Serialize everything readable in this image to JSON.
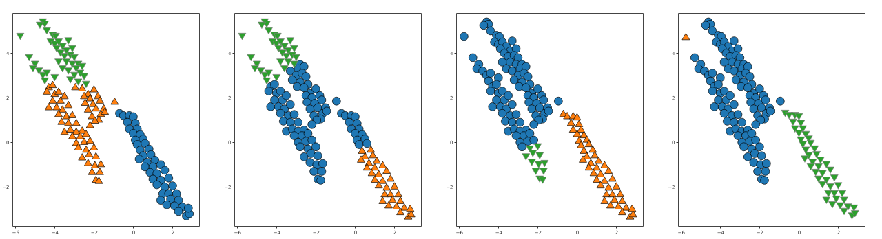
{
  "chart_data": [
    {
      "type": "scatter",
      "xlim": [
        -6.15,
        3.35
      ],
      "ylim": [
        -3.75,
        5.8
      ],
      "xticks": [
        -6,
        -4,
        -2,
        0,
        2
      ],
      "yticks": [
        -2,
        0,
        2,
        4
      ],
      "grid": false,
      "series": [
        {
          "color": "#1f77b4",
          "marker": "circle",
          "x": [
            -0.7,
            -0.5,
            -0.2,
            0.0,
            -0.3,
            0.1,
            -0.2,
            0.2,
            0.0,
            0.35,
            0.1,
            0.5,
            0.2,
            0.6,
            0.35,
            0.8,
            0.5,
            0.9,
            0.3,
            0.7,
            1.1,
            0.6,
            1.0,
            1.4,
            0.85,
            1.2,
            1.6,
            1.0,
            1.4,
            1.8,
            1.2,
            1.6,
            2.0,
            1.5,
            1.8,
            2.2,
            1.4,
            1.9,
            2.3,
            1.7,
            2.1,
            2.5,
            2.3,
            2.7,
            2.85,
            2.8
          ],
          "values": [
            1.3,
            1.2,
            1.2,
            1.15,
            0.9,
            0.85,
            0.6,
            0.6,
            0.4,
            0.35,
            0.1,
            0.15,
            -0.1,
            -0.05,
            -0.35,
            -0.3,
            -0.6,
            -0.55,
            -0.75,
            -0.9,
            -0.8,
            -1.1,
            -1.1,
            -1.0,
            -1.35,
            -1.4,
            -1.25,
            -1.65,
            -1.7,
            -1.6,
            -1.9,
            -2.0,
            -1.95,
            -2.3,
            -2.3,
            -2.3,
            -2.6,
            -2.55,
            -2.6,
            -2.8,
            -2.85,
            -2.9,
            -3.1,
            -3.3,
            -3.2,
            -2.95
          ]
        },
        {
          "color": "#ff7f0e",
          "marker": "triangle",
          "x": [
            -2.95,
            -2.6,
            -2.3,
            -2.0,
            -2.5,
            -2.2,
            -1.8,
            -2.45,
            -2.05,
            -1.7,
            -2.3,
            -1.9,
            -1.5,
            -1.65,
            -2.1,
            -1.75,
            -1.45,
            -1.95,
            -4.3,
            -4.1,
            -4.4,
            -4.0,
            -3.8,
            -4.3,
            -4.1,
            -3.7,
            -3.5,
            -3.9,
            -3.6,
            -3.3,
            -3.8,
            -3.4,
            -3.1,
            -3.65,
            -3.3,
            -2.9,
            -3.5,
            -3.2,
            -2.9,
            -2.6,
            -3.1,
            -2.7,
            -2.4,
            -2.9,
            -2.5,
            -2.2,
            -2.2,
            -2.8,
            -2.4,
            -2.0,
            -2.6,
            -2.25,
            -1.9,
            -2.3,
            -1.95,
            -1.65,
            -2.1,
            -1.7,
            -1.9,
            -1.75,
            -0.95
          ],
          "values": [
            2.5,
            2.45,
            2.2,
            2.4,
            2.1,
            2.0,
            2.1,
            1.8,
            1.75,
            1.9,
            1.5,
            1.55,
            1.55,
            1.3,
            1.2,
            1.05,
            1.4,
            1.0,
            2.5,
            2.6,
            2.3,
            2.2,
            2.3,
            1.6,
            1.9,
            1.9,
            2.1,
            1.6,
            1.5,
            1.7,
            1.3,
            1.2,
            1.25,
            0.95,
            0.9,
            0.9,
            0.5,
            0.6,
            0.5,
            0.55,
            0.3,
            0.3,
            0.4,
            0.0,
            0.05,
            0.8,
            0.1,
            -0.2,
            -0.3,
            -0.2,
            -0.65,
            -0.5,
            -0.6,
            -0.9,
            -1.0,
            -0.95,
            -1.3,
            -1.3,
            -1.65,
            -1.7,
            1.85
          ]
        },
        {
          "color": "#2ca02c",
          "marker": "triangle-down",
          "x": [
            -4.6,
            -4.5,
            -4.75,
            -4.4,
            -4.1,
            -3.95,
            -4.2,
            -4.0,
            -3.8,
            -3.3,
            -3.6,
            -3.9,
            -3.4,
            -3.1,
            -3.7,
            -3.5,
            -3.2,
            -3.0,
            -3.8,
            -3.4,
            -3.1,
            -2.8,
            -3.6,
            -3.3,
            -2.9,
            -2.6,
            -3.0,
            -2.7,
            -3.2,
            -2.5,
            -2.8,
            -2.4,
            -5.3,
            -5.0,
            -5.1,
            -4.8,
            -4.6,
            -4.4,
            -4.0,
            -4.5,
            -5.75
          ],
          "values": [
            5.4,
            5.3,
            5.25,
            5.0,
            4.8,
            4.75,
            4.5,
            4.4,
            4.5,
            4.55,
            4.3,
            4.2,
            4.1,
            4.2,
            4.0,
            3.85,
            3.9,
            3.8,
            3.6,
            3.6,
            3.5,
            3.5,
            3.3,
            3.2,
            3.3,
            3.4,
            3.0,
            3.1,
            2.8,
            2.95,
            2.7,
            2.6,
            3.8,
            3.5,
            3.3,
            3.2,
            3.0,
            3.1,
            2.9,
            2.75,
            4.75
          ]
        }
      ]
    },
    {
      "type": "scatter",
      "xlim": [
        -6.15,
        3.35
      ],
      "ylim": [
        -3.75,
        5.8
      ],
      "xticks": [
        -6,
        -4,
        -2,
        0,
        2
      ],
      "yticks": [
        -2,
        0,
        2,
        4
      ],
      "grid": false,
      "series": [
        {
          "color": "#1f77b4",
          "marker": "circle",
          "x": [
            -2.8,
            -3.3,
            -2.9,
            -2.6,
            -3.0,
            -2.7,
            -3.2,
            -2.5,
            -2.8,
            -2.4,
            -2.95,
            -2.6,
            -2.3,
            -2.0,
            -2.5,
            -2.2,
            -1.8,
            -2.45,
            -2.05,
            -1.7,
            -2.3,
            -1.9,
            -1.5,
            -1.65,
            -2.1,
            -1.75,
            -1.45,
            -1.95,
            -4.3,
            -4.1,
            -4.4,
            -4.0,
            -3.8,
            -4.3,
            -4.1,
            -3.7,
            -3.5,
            -3.9,
            -3.6,
            -3.3,
            -3.8,
            -3.4,
            -3.1,
            -3.65,
            -3.3,
            -2.9,
            -3.5,
            -3.2,
            -2.9,
            -2.6,
            -3.1,
            -2.7,
            -2.4,
            -2.9,
            -2.5,
            -2.2,
            -2.2,
            -2.8,
            -2.4,
            -2.0,
            -2.6,
            -2.25,
            -1.9,
            -2.3,
            -1.95,
            -1.65,
            -2.1,
            -1.7,
            -1.9,
            -1.75,
            -0.95,
            -0.7,
            -0.5,
            -0.2,
            0.0,
            -0.3,
            0.1,
            -0.2,
            0.2,
            0.0,
            0.35,
            0.1,
            0.5,
            0.2,
            0.6
          ],
          "values": [
            3.5,
            3.2,
            3.3,
            3.4,
            3.0,
            3.1,
            2.8,
            2.95,
            2.7,
            2.6,
            2.5,
            2.45,
            2.2,
            2.4,
            2.1,
            2.0,
            2.1,
            1.8,
            1.75,
            1.9,
            1.5,
            1.55,
            1.55,
            1.3,
            1.2,
            1.05,
            1.4,
            1.0,
            2.5,
            2.6,
            2.3,
            2.2,
            2.3,
            1.6,
            1.9,
            1.9,
            2.1,
            1.6,
            1.5,
            1.7,
            1.3,
            1.2,
            1.25,
            0.95,
            0.9,
            0.9,
            0.5,
            0.6,
            0.5,
            0.55,
            0.3,
            0.3,
            0.4,
            0.0,
            0.05,
            0.8,
            0.1,
            -0.2,
            -0.3,
            -0.2,
            -0.65,
            -0.5,
            -0.6,
            -0.9,
            -1.0,
            -0.95,
            -1.3,
            -1.3,
            -1.65,
            -1.7,
            1.85,
            1.3,
            1.2,
            1.2,
            1.15,
            0.9,
            0.85,
            0.6,
            0.6,
            0.4,
            0.35,
            0.1,
            0.15,
            -0.1,
            -0.05
          ]
        },
        {
          "color": "#ff7f0e",
          "marker": "triangle",
          "x": [
            0.35,
            0.8,
            0.5,
            0.9,
            0.3,
            0.7,
            1.1,
            0.6,
            1.0,
            1.4,
            0.85,
            1.2,
            1.6,
            1.0,
            1.4,
            1.8,
            1.2,
            1.6,
            2.0,
            1.5,
            1.8,
            2.2,
            1.4,
            1.9,
            2.3,
            1.7,
            2.1,
            2.5,
            2.3,
            2.7,
            2.85,
            2.8
          ],
          "values": [
            -0.35,
            -0.3,
            -0.6,
            -0.55,
            -0.75,
            -0.9,
            -0.8,
            -1.1,
            -1.1,
            -1.0,
            -1.35,
            -1.4,
            -1.25,
            -1.65,
            -1.7,
            -1.6,
            -1.9,
            -2.0,
            -1.95,
            -2.3,
            -2.3,
            -2.3,
            -2.6,
            -2.55,
            -2.6,
            -2.8,
            -2.85,
            -2.9,
            -3.1,
            -3.3,
            -3.2,
            -2.95
          ]
        },
        {
          "color": "#2ca02c",
          "marker": "triangle-down",
          "x": [
            -4.6,
            -4.5,
            -4.75,
            -4.4,
            -4.1,
            -3.95,
            -4.2,
            -4.0,
            -3.8,
            -3.3,
            -3.6,
            -3.9,
            -3.4,
            -3.1,
            -3.7,
            -3.5,
            -3.2,
            -3.0,
            -3.8,
            -3.4,
            -3.1,
            -3.6,
            -5.3,
            -5.0,
            -5.1,
            -4.8,
            -4.6,
            -4.4,
            -4.0,
            -4.5,
            -5.75
          ],
          "values": [
            5.4,
            5.3,
            5.25,
            5.0,
            4.8,
            4.75,
            4.5,
            4.4,
            4.5,
            4.55,
            4.3,
            4.2,
            4.1,
            4.2,
            4.0,
            3.85,
            3.9,
            3.8,
            3.6,
            3.6,
            3.5,
            3.3,
            3.8,
            3.5,
            3.3,
            3.2,
            3.0,
            3.1,
            2.9,
            2.75,
            4.75
          ]
        }
      ]
    },
    {
      "type": "scatter",
      "xlim": [
        -6.15,
        3.35
      ],
      "ylim": [
        -3.75,
        5.8
      ],
      "xticks": [
        -6,
        -4,
        -2,
        0,
        2
      ],
      "yticks": [
        -2,
        0,
        2,
        4
      ],
      "grid": false,
      "series": [
        {
          "color": "#1f77b4",
          "marker": "circle",
          "x": [
            -4.6,
            -4.5,
            -4.75,
            -4.4,
            -4.1,
            -3.95,
            -4.2,
            -4.0,
            -3.8,
            -3.3,
            -3.6,
            -3.9,
            -3.4,
            -3.1,
            -3.7,
            -3.5,
            -3.2,
            -3.0,
            -3.8,
            -3.4,
            -3.1,
            -2.8,
            -3.6,
            -3.3,
            -2.9,
            -2.6,
            -3.0,
            -2.7,
            -3.2,
            -2.5,
            -2.8,
            -2.4,
            -2.95,
            -2.6,
            -2.3,
            -2.0,
            -2.5,
            -2.2,
            -1.8,
            -2.45,
            -2.05,
            -1.7,
            -2.3,
            -1.9,
            -1.5,
            -1.65,
            -2.1,
            -1.75,
            -1.45,
            -1.95,
            -5.3,
            -5.0,
            -5.1,
            -4.8,
            -4.6,
            -4.4,
            -4.0,
            -4.5,
            -4.3,
            -4.1,
            -4.4,
            -4.0,
            -3.8,
            -4.3,
            -4.1,
            -3.7,
            -3.5,
            -3.9,
            -3.6,
            -3.3,
            -3.8,
            -3.4,
            -3.1,
            -3.65,
            -3.3,
            -2.9,
            -3.5,
            -3.2,
            -2.9,
            -2.6,
            -3.1,
            -2.7,
            -2.4,
            -2.9,
            -2.5,
            -2.2,
            -2.2,
            -2.8,
            -5.75,
            -0.95
          ],
          "values": [
            5.4,
            5.3,
            5.25,
            5.0,
            4.8,
            4.75,
            4.5,
            4.4,
            4.5,
            4.55,
            4.3,
            4.2,
            4.1,
            4.2,
            4.0,
            3.85,
            3.9,
            3.8,
            3.6,
            3.6,
            3.5,
            3.5,
            3.3,
            3.2,
            3.3,
            3.4,
            3.0,
            3.1,
            2.8,
            2.95,
            2.7,
            2.6,
            2.5,
            2.45,
            2.2,
            2.4,
            2.1,
            2.0,
            2.1,
            1.8,
            1.75,
            1.9,
            1.5,
            1.55,
            1.55,
            1.3,
            1.2,
            1.05,
            1.4,
            1.0,
            3.8,
            3.5,
            3.3,
            3.2,
            3.0,
            3.1,
            2.9,
            2.75,
            2.5,
            2.6,
            2.3,
            2.2,
            2.3,
            1.6,
            1.9,
            1.9,
            2.1,
            1.6,
            1.5,
            1.7,
            1.3,
            1.2,
            1.25,
            0.95,
            0.9,
            0.9,
            0.5,
            0.6,
            0.5,
            0.55,
            0.3,
            0.3,
            0.4,
            0.0,
            0.05,
            0.8,
            0.1,
            -0.2,
            4.75,
            1.85
          ]
        },
        {
          "color": "#ff7f0e",
          "marker": "triangle",
          "x": [
            -0.7,
            -0.5,
            -0.2,
            0.0,
            -0.3,
            0.1,
            -0.2,
            0.2,
            0.0,
            0.35,
            0.1,
            0.5,
            0.2,
            0.6,
            0.35,
            0.8,
            0.5,
            0.9,
            0.3,
            0.7,
            1.1,
            0.6,
            1.0,
            1.4,
            0.85,
            1.2,
            1.6,
            1.0,
            1.4,
            1.8,
            1.2,
            1.6,
            2.0,
            1.5,
            1.8,
            2.2,
            1.4,
            1.9,
            2.3,
            1.7,
            2.1,
            2.5,
            2.3,
            2.7,
            2.85,
            2.8
          ],
          "values": [
            1.3,
            1.2,
            1.2,
            1.15,
            0.9,
            0.85,
            0.6,
            0.6,
            0.4,
            0.35,
            0.1,
            0.15,
            -0.1,
            -0.05,
            -0.35,
            -0.3,
            -0.6,
            -0.55,
            -0.75,
            -0.9,
            -0.8,
            -1.1,
            -1.1,
            -1.0,
            -1.35,
            -1.4,
            -1.25,
            -1.65,
            -1.7,
            -1.6,
            -1.9,
            -2.0,
            -1.95,
            -2.3,
            -2.3,
            -2.3,
            -2.6,
            -2.55,
            -2.6,
            -2.8,
            -2.85,
            -2.9,
            -3.1,
            -3.3,
            -3.2,
            -2.95
          ]
        },
        {
          "color": "#2ca02c",
          "marker": "triangle-down",
          "x": [
            -2.4,
            -2.0,
            -2.6,
            -2.25,
            -1.9,
            -2.3,
            -1.95,
            -1.65,
            -2.1,
            -1.7,
            -1.9,
            -1.75
          ],
          "values": [
            -0.3,
            -0.2,
            -0.65,
            -0.5,
            -0.6,
            -0.9,
            -1.0,
            -0.95,
            -1.3,
            -1.3,
            -1.65,
            -1.7
          ]
        }
      ]
    },
    {
      "type": "scatter",
      "xlim": [
        -6.15,
        3.35
      ],
      "ylim": [
        -3.75,
        5.8
      ],
      "xticks": [
        -6,
        -4,
        -2,
        0,
        2
      ],
      "yticks": [
        -2,
        0,
        2,
        4
      ],
      "grid": false,
      "series": [
        {
          "color": "#1f77b4",
          "marker": "circle",
          "x": [
            -4.6,
            -4.5,
            -4.75,
            -4.4,
            -4.1,
            -3.95,
            -4.2,
            -4.0,
            -3.8,
            -3.3,
            -3.6,
            -3.9,
            -3.4,
            -3.1,
            -3.7,
            -3.5,
            -3.2,
            -3.0,
            -3.8,
            -3.4,
            -3.1,
            -2.8,
            -3.6,
            -3.3,
            -2.9,
            -2.6,
            -3.0,
            -2.7,
            -3.2,
            -2.5,
            -2.8,
            -2.4,
            -2.95,
            -2.6,
            -2.3,
            -2.0,
            -2.5,
            -2.2,
            -1.8,
            -2.45,
            -2.05,
            -1.7,
            -2.3,
            -1.9,
            -1.5,
            -1.65,
            -2.1,
            -1.75,
            -1.45,
            -1.95,
            -5.3,
            -5.0,
            -5.1,
            -4.8,
            -4.6,
            -4.4,
            -4.0,
            -4.5,
            -4.3,
            -4.1,
            -4.4,
            -4.0,
            -3.8,
            -4.3,
            -4.1,
            -3.7,
            -3.5,
            -3.9,
            -3.6,
            -3.3,
            -3.8,
            -3.4,
            -3.1,
            -3.65,
            -3.3,
            -2.9,
            -3.5,
            -3.2,
            -2.9,
            -2.6,
            -3.1,
            -2.7,
            -2.4,
            -2.9,
            -2.5,
            -2.2,
            -2.2,
            -2.8,
            -2.4,
            -2.0,
            -2.6,
            -2.25,
            -1.9,
            -2.3,
            -1.95,
            -1.65,
            -2.1,
            -1.7,
            -1.9,
            -1.75,
            -0.95
          ],
          "values": [
            5.4,
            5.3,
            5.25,
            5.0,
            4.8,
            4.75,
            4.5,
            4.4,
            4.5,
            4.55,
            4.3,
            4.2,
            4.1,
            4.2,
            4.0,
            3.85,
            3.9,
            3.8,
            3.6,
            3.6,
            3.5,
            3.5,
            3.3,
            3.2,
            3.3,
            3.4,
            3.0,
            3.1,
            2.8,
            2.95,
            2.7,
            2.6,
            2.5,
            2.45,
            2.2,
            2.4,
            2.1,
            2.0,
            2.1,
            1.8,
            1.75,
            1.9,
            1.5,
            1.55,
            1.55,
            1.3,
            1.2,
            1.05,
            1.4,
            1.0,
            3.8,
            3.5,
            3.3,
            3.2,
            3.0,
            3.1,
            2.9,
            2.75,
            2.5,
            2.6,
            2.3,
            2.2,
            2.3,
            1.6,
            1.9,
            1.9,
            2.1,
            1.6,
            1.5,
            1.7,
            1.3,
            1.2,
            1.25,
            0.95,
            0.9,
            0.9,
            0.5,
            0.6,
            0.5,
            0.55,
            0.3,
            0.3,
            0.4,
            0.0,
            0.05,
            0.8,
            0.1,
            -0.2,
            -0.3,
            -0.2,
            -0.65,
            -0.5,
            -0.6,
            -0.9,
            -1.0,
            -0.95,
            -1.3,
            -1.3,
            -1.65,
            -1.7,
            1.85
          ]
        },
        {
          "color": "#ff7f0e",
          "marker": "triangle",
          "x": [
            -5.75
          ],
          "values": [
            4.75
          ]
        },
        {
          "color": "#2ca02c",
          "marker": "triangle-down",
          "x": [
            -0.7,
            -0.5,
            -0.2,
            0.0,
            -0.3,
            0.1,
            -0.2,
            0.2,
            0.0,
            0.35,
            0.1,
            0.5,
            0.2,
            0.6,
            0.35,
            0.8,
            0.5,
            0.9,
            0.3,
            0.7,
            1.1,
            0.6,
            1.0,
            1.4,
            0.85,
            1.2,
            1.6,
            1.0,
            1.4,
            1.8,
            1.2,
            1.6,
            2.0,
            1.5,
            1.8,
            2.2,
            1.4,
            1.9,
            2.3,
            1.7,
            2.1,
            2.5,
            2.3,
            2.7,
            2.85,
            2.8
          ],
          "values": [
            1.3,
            1.2,
            1.2,
            1.15,
            0.9,
            0.85,
            0.6,
            0.6,
            0.4,
            0.35,
            0.1,
            0.15,
            -0.1,
            -0.05,
            -0.35,
            -0.3,
            -0.6,
            -0.55,
            -0.75,
            -0.9,
            -0.8,
            -1.1,
            -1.1,
            -1.0,
            -1.35,
            -1.4,
            -1.25,
            -1.65,
            -1.7,
            -1.6,
            -1.9,
            -2.0,
            -1.95,
            -2.3,
            -2.3,
            -2.3,
            -2.6,
            -2.55,
            -2.6,
            -2.8,
            -2.85,
            -2.9,
            -3.1,
            -3.3,
            -3.2,
            -2.95
          ]
        }
      ]
    }
  ]
}
